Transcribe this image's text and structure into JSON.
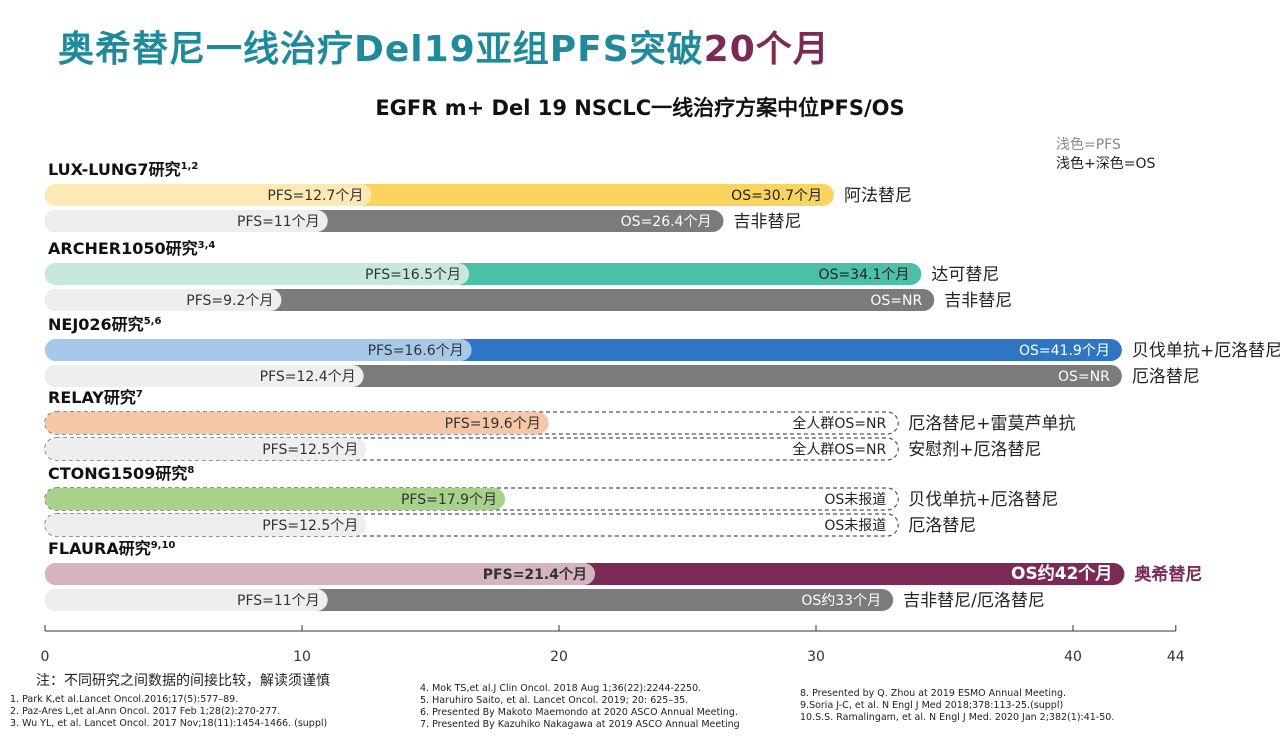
{
  "header": {
    "title_main": "奥希替尼一线治疗Del19亚组PFS突破",
    "title_accent": "20个月",
    "subtitle": "EGFR m+ Del 19 NSCLC一线治疗方案中位PFS/OS"
  },
  "legend": {
    "light": "浅色=PFS",
    "combined": "浅色+深色=OS"
  },
  "colors": {
    "title": "#1e8a9a",
    "title_accent": "#7a2a55",
    "afatinib_light": "#fde9b3",
    "afatinib_dark": "#fbd35f",
    "gefitinib_light": "#eeeeee",
    "gefitinib_dark": "#7b7b7b",
    "dacomitinib_light": "#c7e8df",
    "dacomitinib_dark": "#4cbfa8",
    "bev_erlotinib_light": "#a8c8ea",
    "bev_erlotinib_dark": "#2e75c4",
    "ramucirumab_light": "#f6c7a7",
    "bev_erlotinib2_light": "#a8d18a",
    "osimertinib_light": "#d6b3c0",
    "osimertinib_dark": "#7a2a55",
    "dashed_outline": "#555555"
  },
  "chart_data": {
    "type": "bar",
    "orientation": "horizontal",
    "title": "EGFR m+ Del 19 NSCLC一线治疗方案中位PFS/OS",
    "xlim": [
      0,
      44
    ],
    "xticks": [
      0,
      10,
      20,
      30,
      40,
      44
    ],
    "grid": false,
    "legend": "top-right",
    "groups": [
      {
        "study": "LUX-LUNG7研究",
        "refs": "1,2",
        "arms": [
          {
            "drug": "阿法替尼",
            "pfs": 12.7,
            "os": 30.7,
            "pfs_label": "PFS=12.7个月",
            "os_label": "OS=30.7个月",
            "os_reported": true,
            "light": "#fde9b3",
            "dark": "#fbd35f"
          },
          {
            "drug": "吉非替尼",
            "pfs": 11,
            "os": 26.4,
            "pfs_label": "PFS=11个月",
            "os_label": "OS=26.4个月",
            "os_reported": true,
            "light": "#eeeeee",
            "dark": "#7b7b7b"
          }
        ]
      },
      {
        "study": "ARCHER1050研究",
        "refs": "3,4",
        "arms": [
          {
            "drug": "达可替尼",
            "pfs": 16.5,
            "os": 34.1,
            "pfs_label": "PFS=16.5个月",
            "os_label": "OS=34.1个月",
            "os_reported": true,
            "light": "#c7e8df",
            "dark": "#4cbfa8"
          },
          {
            "drug": "吉非替尼",
            "pfs": 9.2,
            "os": null,
            "os_bar_to": 34.6,
            "pfs_label": "PFS=9.2个月",
            "os_label": "OS=NR",
            "os_reported": true,
            "light": "#eeeeee",
            "dark": "#7b7b7b"
          }
        ]
      },
      {
        "study": "NEJ026研究",
        "refs": "5,6",
        "arms": [
          {
            "drug": "贝伐单抗+厄洛替尼",
            "pfs": 16.6,
            "os": 41.9,
            "pfs_label": "PFS=16.6个月",
            "os_label": "OS=41.9个月",
            "os_reported": true,
            "light": "#a8c8ea",
            "dark": "#2e75c4"
          },
          {
            "drug": "厄洛替尼",
            "pfs": 12.4,
            "os": null,
            "os_bar_to": 41.9,
            "pfs_label": "PFS=12.4个月",
            "os_label": "OS=NR",
            "os_reported": true,
            "light": "#eeeeee",
            "dark": "#7b7b7b"
          }
        ]
      },
      {
        "study": "RELAY研究",
        "refs": "7",
        "arms": [
          {
            "drug": "厄洛替尼+雷莫芦单抗",
            "pfs": 19.6,
            "os": null,
            "os_bar_to": 33.2,
            "pfs_label": "PFS=19.6个月",
            "os_label": "全人群OS=NR",
            "os_reported": false,
            "light": "#f6c7a7",
            "dark": null
          },
          {
            "drug": "安慰剂+厄洛替尼",
            "pfs": 12.5,
            "os": null,
            "os_bar_to": 33.2,
            "pfs_label": "PFS=12.5个月",
            "os_label": "全人群OS=NR",
            "os_reported": false,
            "light": "#eeeeee",
            "dark": null
          }
        ]
      },
      {
        "study": "CTONG1509研究",
        "refs": "8",
        "arms": [
          {
            "drug": "贝伐单抗+厄洛替尼",
            "pfs": 17.9,
            "os": null,
            "os_bar_to": 33.2,
            "pfs_label": "PFS=17.9个月",
            "os_label": "OS未报道",
            "os_reported": false,
            "light": "#a8d18a",
            "dark": null
          },
          {
            "drug": "厄洛替尼",
            "pfs": 12.5,
            "os": null,
            "os_bar_to": 33.2,
            "pfs_label": "PFS=12.5个月",
            "os_label": "OS未报道",
            "os_reported": false,
            "light": "#eeeeee",
            "dark": null
          }
        ]
      },
      {
        "study": "FLAURA研究",
        "refs": "9,10",
        "arms": [
          {
            "drug": "奥希替尼",
            "pfs": 21.4,
            "os": 42,
            "pfs_label": "PFS=21.4个月",
            "os_label": "OS约42个月",
            "os_reported": true,
            "light": "#d6b3c0",
            "dark": "#7a2a55",
            "highlight": true
          },
          {
            "drug": "吉非替尼/厄洛替尼",
            "pfs": 11,
            "os": 33,
            "pfs_label": "PFS=11个月",
            "os_label": "OS约33个月",
            "os_reported": true,
            "light": "#eeeeee",
            "dark": "#7b7b7b"
          }
        ]
      }
    ]
  },
  "note": "注：不同研究之间数据的间接比较，解读须谨慎",
  "references": {
    "col1": [
      "1. Park K,et al.Lancet Oncol.2016;17(5):577–89.",
      "2. Paz-Ares L,et al.Ann Oncol. 2017 Feb 1;28(2):270-277.",
      "3. Wu YL, et al. Lancet Oncol. 2017 Nov;18(11):1454-1466. (suppl)"
    ],
    "col2": [
      "4. Mok TS,et al.J Clin Oncol. 2018 Aug 1;36(22):2244-2250.",
      "5. Haruhiro Saito, et al. Lancet Oncol. 2019; 20: 625–35.",
      "6. Presented By Makoto Maemondo at 2020 ASCO Annual Meeting.",
      "7. Presented By Kazuhiko Nakagawa at 2019 ASCO Annual Meeting"
    ],
    "col3": [
      "8. Presented by Q. Zhou at 2019 ESMO Annual Meeting.",
      "9.Soria J-C, et al. N Engl J Med 2018;378:113-25.(suppl)",
      "10.S.S. Ramalingam, et al. N Engl J Med. 2020 Jan 2;382(1):41-50."
    ]
  }
}
